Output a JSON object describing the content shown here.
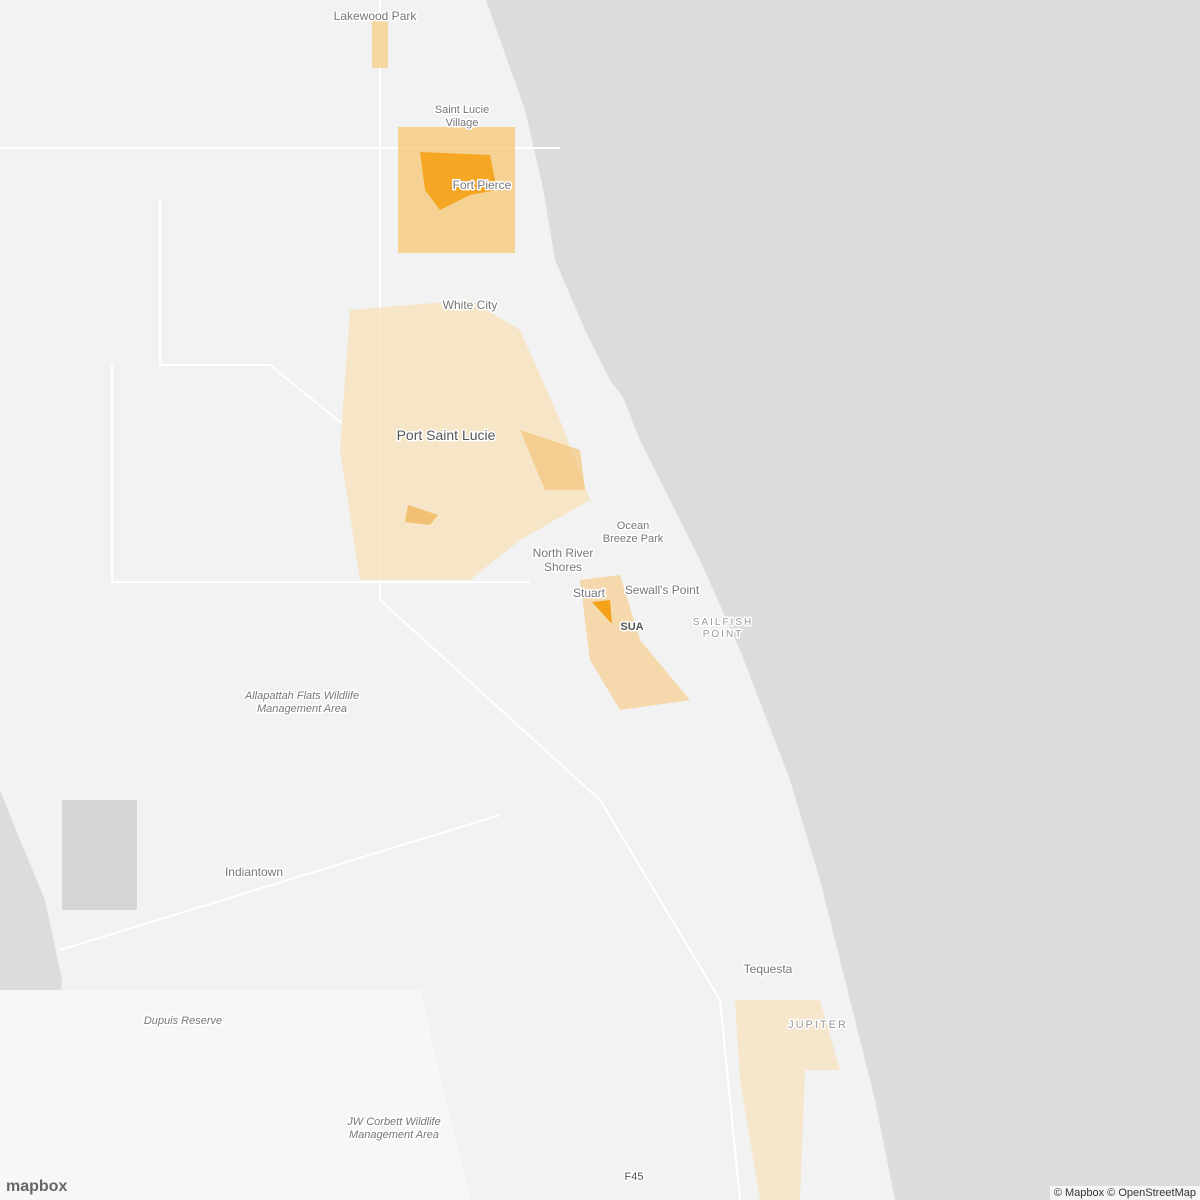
{
  "places": [
    {
      "lines": [
        "Lakewood Park"
      ]
    },
    {
      "lines": [
        "Saint Lucie",
        "Village"
      ]
    },
    {
      "lines": [
        "Fort Pierce"
      ]
    },
    {
      "lines": [
        "White City"
      ]
    },
    {
      "lines": [
        "Port Saint Lucie"
      ]
    },
    {
      "lines": [
        "Ocean",
        "Breeze Park"
      ]
    },
    {
      "lines": [
        "North River",
        "Shores"
      ]
    },
    {
      "lines": [
        "Stuart"
      ]
    },
    {
      "lines": [
        "Sewall's Point"
      ]
    },
    {
      "lines": [
        "SUA"
      ]
    },
    {
      "lines": [
        "SAILFISH",
        "POINT"
      ]
    },
    {
      "lines": [
        "Allapattah Flats Wildlife",
        "Management Area"
      ]
    },
    {
      "lines": [
        "Indiantown"
      ]
    },
    {
      "lines": [
        "Tequesta"
      ]
    },
    {
      "lines": [
        "JUPITER"
      ]
    },
    {
      "lines": [
        "Dupuis Reserve"
      ]
    },
    {
      "lines": [
        "JW Corbett Wildlife",
        "Management Area"
      ]
    },
    {
      "lines": [
        "F45"
      ]
    }
  ],
  "logo": "mapbox",
  "attribution": "© Mapbox © OpenStreetMap"
}
